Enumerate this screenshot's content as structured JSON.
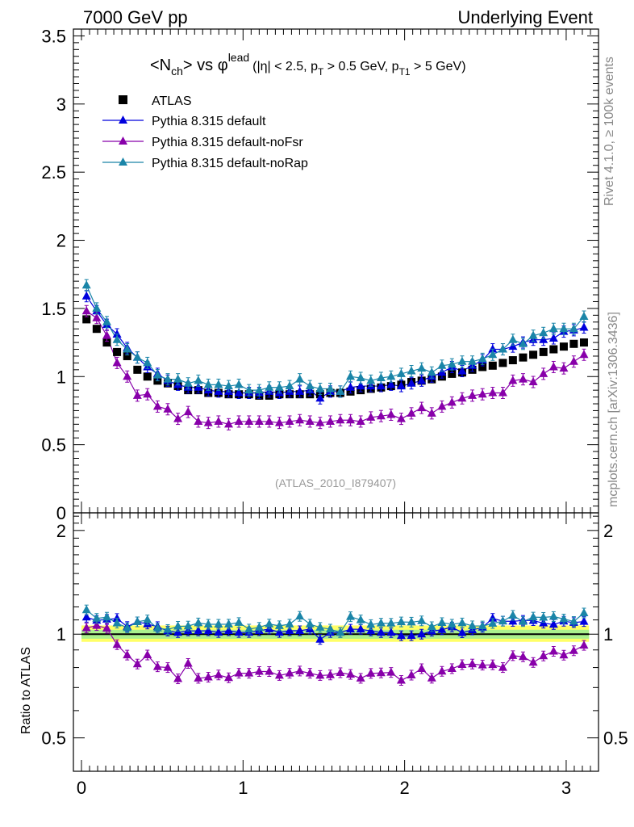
{
  "header": {
    "left": "7000 GeV pp",
    "right": "Underlying Event"
  },
  "side_labels": {
    "top": "Rivet 4.1.0, ≥ 100k events",
    "bottom": "mcplots.cern.ch [arXiv:1306.3436]"
  },
  "analysis_id": "(ATLAS_2010_I879407)",
  "title": {
    "main_a": "<N",
    "main_sub": "ch",
    "main_b": "> vs φ",
    "main_sup": "lead",
    "cut_a": "(|η| < 2.5, p",
    "cut_sub1": "T",
    "cut_b": " > 0.5 GeV, p",
    "cut_sub2": "T1",
    "cut_c": " > 5 GeV)"
  },
  "ratio_ylabel": "Ratio to ATLAS",
  "colors": {
    "atlas": "#000000",
    "default": "#0000dd",
    "noFsr": "#8800aa",
    "noRap": "#1a85a8",
    "band_yellow": "#ffff66",
    "band_green": "#aaf08c"
  },
  "chart_data": {
    "type": "scatter",
    "x": [
      0.031,
      0.094,
      0.157,
      0.22,
      0.283,
      0.346,
      0.408,
      0.471,
      0.534,
      0.597,
      0.66,
      0.723,
      0.785,
      0.848,
      0.911,
      0.974,
      1.037,
      1.1,
      1.162,
      1.225,
      1.288,
      1.351,
      1.414,
      1.477,
      1.54,
      1.602,
      1.665,
      1.728,
      1.791,
      1.854,
      1.916,
      1.979,
      2.042,
      2.105,
      2.168,
      2.231,
      2.293,
      2.356,
      2.419,
      2.482,
      2.545,
      2.608,
      2.67,
      2.733,
      2.796,
      2.859,
      2.922,
      2.985,
      3.047,
      3.11
    ],
    "xlim": [
      -0.05,
      3.2
    ],
    "xticks": [
      0,
      1,
      2,
      3
    ],
    "main": {
      "ylim": [
        0,
        3.55
      ],
      "yticks": [
        0,
        0.5,
        1,
        1.5,
        2,
        2.5,
        3,
        3.5
      ],
      "ytick_labels": [
        "0",
        "0.5",
        "1",
        "1.5",
        "2",
        "2.5",
        "3",
        "3.5"
      ]
    },
    "ratio": {
      "ylim": [
        0.4,
        2.25
      ],
      "yticks": [
        0.5,
        1,
        2
      ],
      "ytick_labels": [
        "0.5",
        "1",
        "2"
      ],
      "band_yellow": [
        0.95,
        1.06
      ],
      "band_green": [
        0.97,
        1.03
      ]
    },
    "series": [
      {
        "name": "ATLAS",
        "key": "atlas",
        "marker": "square",
        "values": [
          1.42,
          1.35,
          1.25,
          1.18,
          1.15,
          1.05,
          1.0,
          0.97,
          0.95,
          0.93,
          0.9,
          0.9,
          0.88,
          0.88,
          0.87,
          0.87,
          0.87,
          0.86,
          0.86,
          0.87,
          0.87,
          0.87,
          0.87,
          0.87,
          0.88,
          0.88,
          0.89,
          0.9,
          0.91,
          0.92,
          0.93,
          0.94,
          0.96,
          0.97,
          0.98,
          1.0,
          1.02,
          1.03,
          1.05,
          1.07,
          1.08,
          1.1,
          1.12,
          1.14,
          1.16,
          1.18,
          1.2,
          1.22,
          1.24,
          1.25
        ]
      },
      {
        "name": "Pythia 8.315 default",
        "key": "default",
        "marker": "triangle",
        "values": [
          1.59,
          1.48,
          1.38,
          1.31,
          1.21,
          1.14,
          1.07,
          1.02,
          0.97,
          0.94,
          0.92,
          0.92,
          0.9,
          0.89,
          0.89,
          0.88,
          0.88,
          0.88,
          0.89,
          0.88,
          0.89,
          0.89,
          0.9,
          0.84,
          0.89,
          0.89,
          0.92,
          0.93,
          0.93,
          0.93,
          0.94,
          0.93,
          0.95,
          0.97,
          1.0,
          1.03,
          1.07,
          1.04,
          1.08,
          1.12,
          1.2,
          1.2,
          1.22,
          1.25,
          1.27,
          1.27,
          1.28,
          1.33,
          1.34,
          1.36
        ]
      },
      {
        "name": "Pythia 8.315 default-noFsr",
        "key": "noFsr",
        "marker": "triangle",
        "values": [
          1.48,
          1.43,
          1.3,
          1.1,
          1.0,
          0.86,
          0.87,
          0.78,
          0.76,
          0.69,
          0.74,
          0.67,
          0.66,
          0.67,
          0.65,
          0.67,
          0.67,
          0.67,
          0.67,
          0.66,
          0.67,
          0.68,
          0.67,
          0.66,
          0.67,
          0.68,
          0.68,
          0.67,
          0.7,
          0.71,
          0.72,
          0.69,
          0.73,
          0.77,
          0.73,
          0.78,
          0.81,
          0.84,
          0.86,
          0.87,
          0.88,
          0.88,
          0.97,
          0.98,
          0.96,
          1.02,
          1.07,
          1.06,
          1.11,
          1.16
        ]
      },
      {
        "name": "Pythia 8.315 default-noRap",
        "key": "noRap",
        "marker": "triangle",
        "values": [
          1.67,
          1.5,
          1.4,
          1.27,
          1.2,
          1.14,
          1.1,
          1.01,
          0.98,
          0.98,
          0.95,
          0.97,
          0.94,
          0.94,
          0.93,
          0.94,
          0.9,
          0.9,
          0.92,
          0.92,
          0.93,
          0.98,
          0.93,
          0.91,
          0.91,
          0.89,
          1.0,
          0.99,
          0.97,
          0.99,
          1.0,
          1.02,
          1.04,
          1.06,
          1.03,
          1.08,
          1.09,
          1.11,
          1.11,
          1.13,
          1.16,
          1.2,
          1.27,
          1.24,
          1.3,
          1.32,
          1.35,
          1.35,
          1.35,
          1.44
        ]
      }
    ]
  }
}
